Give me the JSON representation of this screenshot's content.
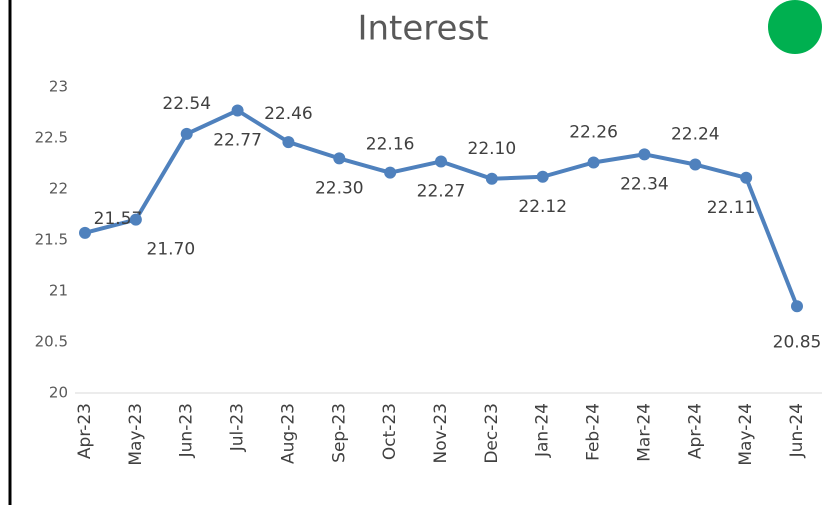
{
  "chart_data": {
    "type": "line",
    "title": "Interest",
    "categories": [
      "Apr-23",
      "May-23",
      "Jun-23",
      "Jul-23",
      "Aug-23",
      "Sep-23",
      "Oct-23",
      "Nov-23",
      "Dec-23",
      "Jan-24",
      "Feb-24",
      "Mar-24",
      "Apr-24",
      "May-24",
      "Jun-24"
    ],
    "series": [
      {
        "name": "Interest",
        "color": "#4f81bd",
        "values": [
          21.57,
          21.7,
          22.54,
          22.77,
          22.46,
          22.3,
          22.16,
          22.27,
          22.1,
          22.12,
          22.26,
          22.34,
          22.24,
          22.11,
          20.85
        ],
        "value_labels": [
          "21.57",
          "21.70",
          "22.54",
          "22.77",
          "22.46",
          "22.30",
          "22.16",
          "22.27",
          "22.10",
          "22.12",
          "22.26",
          "22.34",
          "22.24",
          "22.11",
          "20.85"
        ]
      }
    ],
    "ylim": [
      20,
      23
    ],
    "yticks": [
      20,
      20.5,
      21,
      21.5,
      22,
      22.5,
      23
    ]
  }
}
